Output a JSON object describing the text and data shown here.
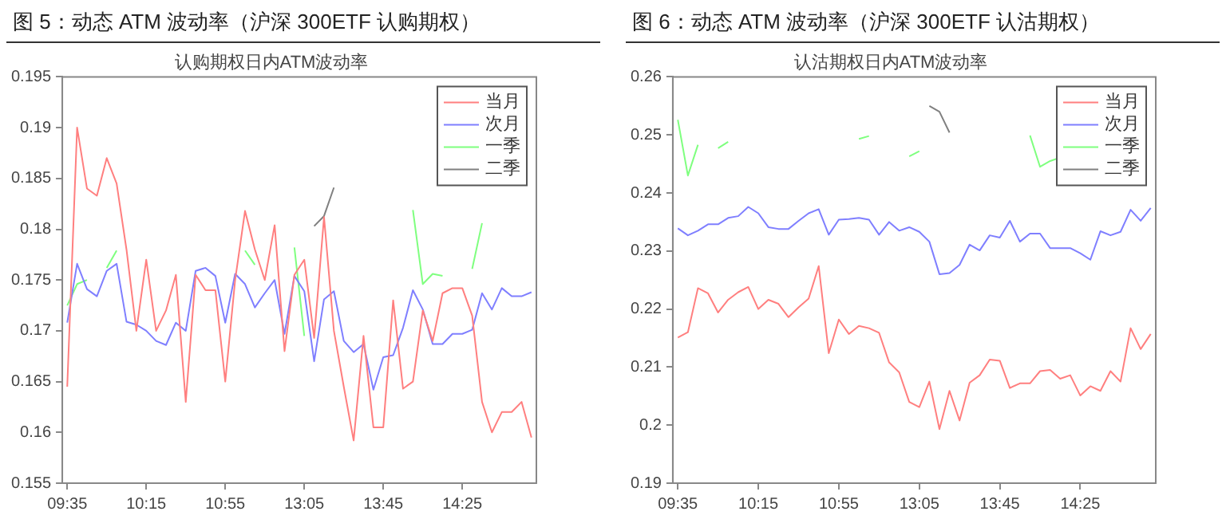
{
  "chart_data": [
    {
      "type": "line",
      "title": "图 5：动态 ATM 波动率（沪深 300ETF 认购期权）",
      "subtitle": "认购期权日内ATM波动率",
      "categories": [
        "09:35",
        null,
        null,
        null,
        null,
        null,
        null,
        null,
        "10:15",
        null,
        null,
        null,
        null,
        null,
        null,
        null,
        "10:55",
        null,
        null,
        null,
        null,
        null,
        null,
        null,
        "13:05",
        null,
        null,
        null,
        null,
        null,
        null,
        null,
        "13:45",
        null,
        null,
        null,
        null,
        null,
        null,
        null,
        "14:25",
        null,
        null,
        null,
        null,
        null,
        null,
        null
      ],
      "ylim": [
        0.155,
        0.195
      ],
      "yticks": [
        0.155,
        0.16,
        0.165,
        0.17,
        0.175,
        0.18,
        0.185,
        0.19,
        0.195
      ],
      "series": [
        {
          "name": "当月",
          "color": "#ff7f7f",
          "values": [
            0.1645,
            0.19,
            0.184,
            0.1833,
            0.187,
            0.1845,
            0.178,
            0.17,
            0.177,
            0.17,
            0.172,
            0.1755,
            0.163,
            0.1755,
            0.174,
            0.174,
            0.165,
            0.175,
            0.1818,
            0.178,
            0.175,
            0.1804,
            0.168,
            0.1755,
            0.177,
            0.1693,
            0.1812,
            0.17,
            0.1645,
            0.1592,
            0.1695,
            0.1605,
            0.1605,
            0.173,
            0.1643,
            0.165,
            0.172,
            0.169,
            0.1737,
            0.1742,
            0.1742,
            0.1715,
            0.163,
            0.16,
            0.162,
            0.162,
            0.163,
            0.1595
          ]
        },
        {
          "name": "次月",
          "color": "#7f7fff",
          "values": [
            0.1708,
            0.1766,
            0.1741,
            0.1734,
            0.1759,
            0.1766,
            0.1709,
            0.1706,
            0.17,
            0.169,
            0.1686,
            0.1708,
            0.17,
            0.1759,
            0.1762,
            0.1754,
            0.1708,
            0.1756,
            0.1746,
            0.1723,
            0.1737,
            0.175,
            0.1697,
            0.1754,
            0.1739,
            0.167,
            0.1731,
            0.1739,
            0.169,
            0.1679,
            0.1687,
            0.1642,
            0.1674,
            0.1676,
            0.1703,
            0.174,
            0.1721,
            0.1687,
            0.1687,
            0.1697,
            0.1697,
            0.1701,
            0.1737,
            0.1721,
            0.1742,
            0.1734,
            0.1734,
            0.1738
          ]
        },
        {
          "name": "一季",
          "color": "#7fff7f",
          "values": [
            0.1725,
            0.1746,
            0.175,
            null,
            0.1762,
            0.1779,
            null,
            null,
            null,
            null,
            null,
            null,
            null,
            null,
            null,
            null,
            null,
            null,
            0.1779,
            0.1765,
            null,
            null,
            null,
            0.1782,
            0.1695,
            null,
            null,
            null,
            null,
            null,
            null,
            null,
            null,
            null,
            null,
            0.1819,
            0.1746,
            0.1756,
            0.1754,
            null,
            null,
            0.1761,
            0.1806,
            null,
            null,
            null,
            null,
            null
          ]
        },
        {
          "name": "二季",
          "color": "#808080",
          "values": [
            null,
            null,
            null,
            null,
            null,
            null,
            null,
            null,
            null,
            null,
            null,
            null,
            null,
            null,
            null,
            null,
            null,
            null,
            null,
            null,
            null,
            null,
            null,
            null,
            null,
            0.1803,
            0.1813,
            0.1841,
            null,
            null,
            null,
            null,
            null,
            null,
            null,
            null,
            null,
            null,
            null,
            null,
            null,
            null,
            null,
            null,
            null,
            null,
            null,
            null
          ]
        }
      ],
      "legend": "top right",
      "marker": "none",
      "grid": false
    },
    {
      "type": "line",
      "title": "图 6：动态 ATM 波动率（沪深 300ETF 认沽期权）",
      "subtitle": "认沽期权日内ATM波动率",
      "categories": [
        "09:35",
        null,
        null,
        null,
        null,
        null,
        null,
        null,
        "10:15",
        null,
        null,
        null,
        null,
        null,
        null,
        null,
        "10:55",
        null,
        null,
        null,
        null,
        null,
        null,
        null,
        "13:05",
        null,
        null,
        null,
        null,
        null,
        null,
        null,
        "13:45",
        null,
        null,
        null,
        null,
        null,
        null,
        null,
        "14:25",
        null,
        null,
        null,
        null,
        null,
        null,
        null
      ],
      "ylim": [
        0.19,
        0.26
      ],
      "yticks": [
        0.19,
        0.2,
        0.21,
        0.22,
        0.23,
        0.24,
        0.25,
        0.26
      ],
      "series": [
        {
          "name": "当月",
          "color": "#ff7f7f",
          "values": [
            0.2151,
            0.216,
            0.2236,
            0.2227,
            0.2194,
            0.2216,
            0.2229,
            0.2238,
            0.22,
            0.2216,
            0.2209,
            0.2186,
            0.2203,
            0.2218,
            0.2274,
            0.2124,
            0.2182,
            0.2157,
            0.2171,
            0.2167,
            0.2159,
            0.2108,
            0.2091,
            0.204,
            0.2031,
            0.2075,
            0.1993,
            0.2059,
            0.2008,
            0.2073,
            0.2086,
            0.2113,
            0.2111,
            0.2064,
            0.2072,
            0.2072,
            0.2093,
            0.2095,
            0.208,
            0.2086,
            0.2051,
            0.2067,
            0.2059,
            0.2093,
            0.2075,
            0.2167,
            0.2131,
            0.2157
          ]
        },
        {
          "name": "次月",
          "color": "#7f7fff",
          "values": [
            0.2339,
            0.2327,
            0.2335,
            0.2346,
            0.2346,
            0.2357,
            0.236,
            0.2376,
            0.2365,
            0.2341,
            0.2338,
            0.2338,
            0.2352,
            0.2365,
            0.2372,
            0.2328,
            0.2354,
            0.2355,
            0.2357,
            0.2354,
            0.2328,
            0.235,
            0.2335,
            0.2341,
            0.2333,
            0.2316,
            0.226,
            0.2262,
            0.2276,
            0.2311,
            0.2301,
            0.2327,
            0.2323,
            0.2352,
            0.2316,
            0.233,
            0.233,
            0.2305,
            0.2305,
            0.2305,
            0.2296,
            0.2285,
            0.2334,
            0.2327,
            0.2333,
            0.2371,
            0.2352,
            0.2374
          ]
        },
        {
          "name": "一季",
          "color": "#7fff7f",
          "values": [
            0.2526,
            0.243,
            0.2483,
            null,
            0.2477,
            0.2488,
            null,
            null,
            null,
            null,
            null,
            null,
            null,
            null,
            null,
            null,
            null,
            null,
            0.2493,
            0.2498,
            null,
            null,
            null,
            0.2463,
            0.2472,
            null,
            null,
            null,
            null,
            null,
            null,
            null,
            null,
            null,
            null,
            0.2499,
            0.2445,
            0.2455,
            0.2461,
            null,
            null,
            null,
            null,
            null,
            null,
            null,
            null,
            null
          ]
        },
        {
          "name": "二季",
          "color": "#808080",
          "values": [
            null,
            null,
            null,
            null,
            null,
            null,
            null,
            null,
            null,
            null,
            null,
            null,
            null,
            null,
            null,
            null,
            null,
            null,
            null,
            null,
            null,
            null,
            null,
            null,
            null,
            0.255,
            0.254,
            0.2504,
            null,
            null,
            null,
            null,
            null,
            null,
            null,
            null,
            null,
            null,
            null,
            null,
            null,
            null,
            null,
            null,
            null,
            null,
            null,
            null
          ]
        }
      ],
      "legend": "top right",
      "marker": "none",
      "grid": false
    }
  ]
}
